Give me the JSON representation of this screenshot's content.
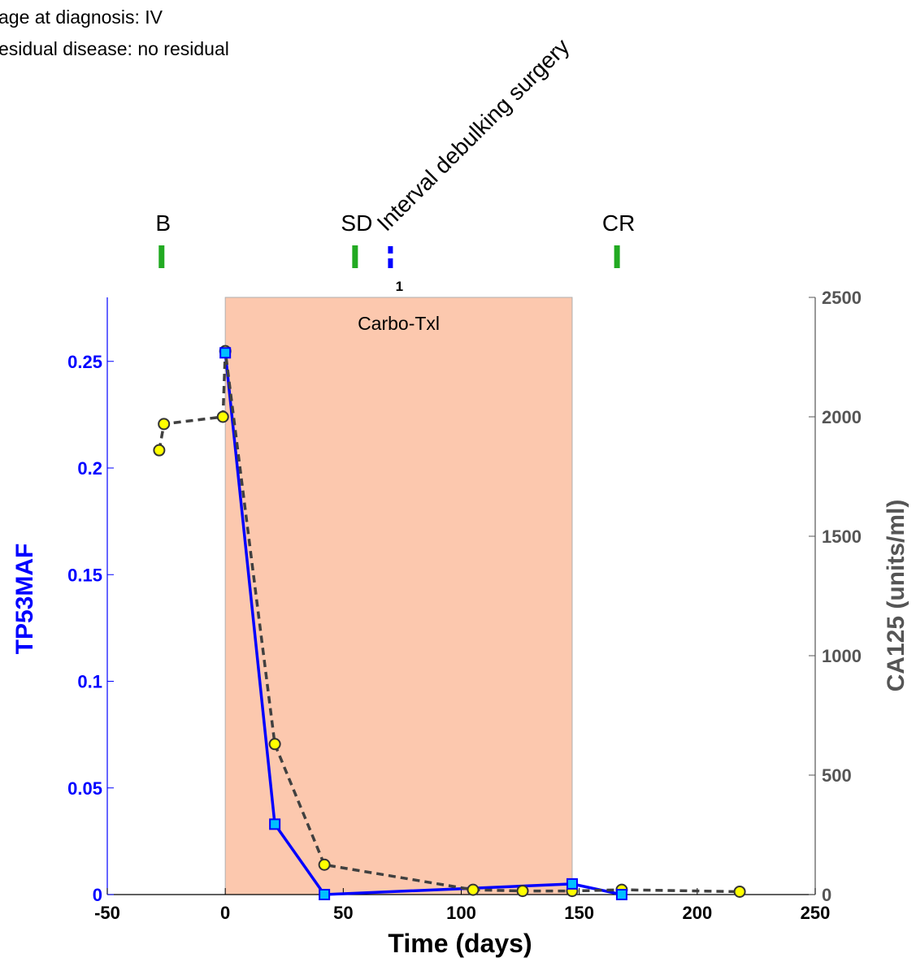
{
  "notes": [
    "age at diagnosis: IV",
    "esidual disease: no residual"
  ],
  "chart_data": {
    "type": "line",
    "xlabel": "Time (days)",
    "ylabel_left": "TP53MAF",
    "ylabel_right": "CA125 (units/ml)",
    "xlim": [
      -50,
      250
    ],
    "ylim_left": [
      0,
      0.28
    ],
    "ylim_right": [
      0,
      2500
    ],
    "x_ticks": [
      -50,
      0,
      50,
      100,
      150,
      200,
      250
    ],
    "x_tick_labels": [
      "-50",
      "0",
      "50",
      "100",
      "150",
      "200",
      "250"
    ],
    "y_left_ticks": [
      0,
      0.05,
      0.1,
      0.15,
      0.2,
      0.25
    ],
    "y_left_tick_labels": [
      "0",
      "0.05",
      "0.1",
      "0.15",
      "0.2",
      "0.25"
    ],
    "y_right_ticks": [
      0,
      500,
      1000,
      1500,
      2000,
      2500
    ],
    "y_right_tick_labels": [
      "0",
      "500",
      "1000",
      "1500",
      "2000",
      "2500"
    ],
    "series": [
      {
        "name": "TP53MAF",
        "axis": "left",
        "color": "#0000ff",
        "marker_fill": "#00bfff",
        "x": [
          0,
          21,
          42,
          147,
          168
        ],
        "values": [
          0.254,
          0.033,
          0.0,
          0.005,
          0.0
        ]
      },
      {
        "name": "CA125",
        "axis": "right",
        "color": "#404040",
        "marker_fill": "#ffff00",
        "x": [
          -28,
          -26,
          -1,
          0,
          21,
          42,
          105,
          126,
          147,
          168,
          218
        ],
        "values": [
          1860,
          1970,
          2000,
          2275,
          630,
          125,
          20,
          15,
          15,
          20,
          12
        ]
      }
    ],
    "treatment": {
      "label": "Carbo-Txl",
      "start": 0,
      "end": 147,
      "color": "#fcc8ae"
    },
    "events": [
      {
        "label": "B",
        "day": -27,
        "color": "#22aa22"
      },
      {
        "label": "SD",
        "day": 55,
        "color": "#22aa22"
      },
      {
        "label": "CR",
        "day": 166,
        "color": "#22aa22"
      }
    ],
    "surgery": {
      "label": "Interval debulking surgery",
      "day": 70,
      "count": "1",
      "color": "#0000ff"
    }
  }
}
